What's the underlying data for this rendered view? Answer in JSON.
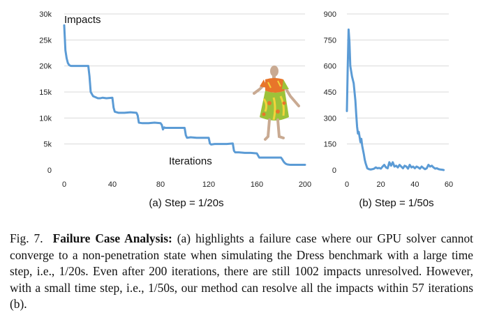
{
  "chart_data": [
    {
      "type": "line",
      "title": "",
      "subcaption": "(a) Step = 1/20s",
      "in_plot_labels": {
        "y": "Impacts",
        "x": "Iterations"
      },
      "xlim": [
        0,
        200
      ],
      "ylim": [
        0,
        30000
      ],
      "x_ticks": [
        "0",
        "40",
        "80",
        "120",
        "160",
        "200"
      ],
      "x_tick_values": [
        0,
        40,
        80,
        120,
        160,
        200
      ],
      "y_ticks": [
        "0",
        "5k",
        "10k",
        "15k",
        "20k",
        "25k",
        "30k"
      ],
      "y_tick_values": [
        0,
        5000,
        10000,
        15000,
        20000,
        25000,
        30000
      ],
      "grid": "horizontal",
      "color": "#5b9bd5",
      "series": [
        {
          "x": [
            0,
            1,
            2,
            3,
            4,
            5,
            6,
            8,
            10,
            12,
            15,
            20,
            21,
            22,
            24,
            26,
            28,
            30,
            32,
            35,
            40,
            41,
            42,
            45,
            50,
            55,
            60,
            61,
            62,
            65,
            70,
            75,
            80,
            81,
            82,
            83,
            84,
            90,
            95,
            100,
            101,
            102,
            105,
            110,
            115,
            120,
            121,
            122,
            125,
            130,
            135,
            140,
            141,
            142,
            145,
            150,
            155,
            160,
            161,
            162,
            165,
            170,
            175,
            180,
            181,
            182,
            183,
            184,
            185,
            186,
            187,
            188,
            189,
            190,
            191,
            192,
            193,
            194,
            195,
            196,
            197,
            198,
            199,
            200
          ],
          "y": [
            27800,
            23000,
            21500,
            20600,
            20200,
            20050,
            20000,
            20000,
            20000,
            20000,
            20000,
            20000,
            18000,
            15000,
            14200,
            14000,
            13800,
            13800,
            13900,
            13800,
            13900,
            12000,
            11200,
            11000,
            11000,
            11100,
            11000,
            10500,
            9100,
            9000,
            9000,
            9100,
            9000,
            8700,
            7800,
            8200,
            8100,
            8100,
            8100,
            8100,
            6700,
            6200,
            6300,
            6200,
            6200,
            6200,
            5100,
            4900,
            5000,
            5000,
            5000,
            5100,
            3700,
            3400,
            3400,
            3300,
            3300,
            3200,
            2800,
            2400,
            2400,
            2400,
            2400,
            2400,
            2100,
            1700,
            1400,
            1200,
            1100,
            1050,
            1020,
            1010,
            1005,
            1003,
            1002,
            1002,
            1002,
            1002,
            1002,
            1002,
            1002,
            1002,
            1002,
            1002
          ]
        }
      ]
    },
    {
      "type": "line",
      "title": "",
      "subcaption": "(b) Step = 1/50s",
      "xlim": [
        0,
        60
      ],
      "ylim": [
        0,
        900
      ],
      "x_ticks": [
        "0",
        "20",
        "40",
        "60"
      ],
      "x_tick_values": [
        0,
        20,
        40,
        60
      ],
      "y_ticks": [
        "0",
        "150",
        "300",
        "450",
        "600",
        "750",
        "900"
      ],
      "y_tick_values": [
        0,
        150,
        300,
        450,
        600,
        750,
        900
      ],
      "grid": "horizontal",
      "color": "#5b9bd5",
      "series": [
        {
          "x": [
            0,
            0.5,
            1,
            1.5,
            2,
            3,
            4,
            5,
            5.5,
            6,
            6.5,
            7,
            8,
            8.5,
            9,
            10,
            10.5,
            11,
            12,
            13,
            14,
            15,
            16,
            17,
            18,
            19,
            20,
            21,
            22,
            23,
            24,
            25,
            26,
            27,
            28,
            29,
            30,
            31,
            32,
            33,
            34,
            35,
            36,
            37,
            38,
            39,
            40,
            41,
            42,
            43,
            44,
            45,
            46,
            47,
            48,
            49,
            50,
            51,
            52,
            53,
            54,
            55,
            56,
            57
          ],
          "y": [
            340,
            600,
            810,
            740,
            600,
            540,
            500,
            400,
            320,
            250,
            210,
            220,
            160,
            180,
            140,
            90,
            60,
            40,
            10,
            5,
            3,
            5,
            8,
            15,
            10,
            12,
            8,
            20,
            30,
            15,
            10,
            45,
            25,
            45,
            20,
            25,
            15,
            30,
            20,
            10,
            25,
            20,
            8,
            30,
            15,
            20,
            10,
            20,
            15,
            8,
            20,
            12,
            5,
            10,
            30,
            20,
            25,
            15,
            8,
            10,
            5,
            3,
            2,
            0
          ]
        }
      ]
    }
  ],
  "caption": {
    "label": "Fig. 7.",
    "bold_title": "Failure Case Analysis:",
    "text": "(a) highlights a failure case where our GPU solver cannot converge to a non-penetration state when simulating the Dress benchmark with a large time step, i.e., 1/20s. Even after 200 iterations, there are still 1002 impacts unresolved. However, with a small time step, i.e., 1/50s, our method can resolve all the impacts within 57 iterations (b)."
  },
  "colors": {
    "line": "#5b9bd5",
    "grid": "#d9d9d9",
    "dress_orange": "#e8752a",
    "dress_green": "#9cc23a",
    "dress_yellow": "#f2d43b",
    "mannequin": "#c9aa92"
  }
}
